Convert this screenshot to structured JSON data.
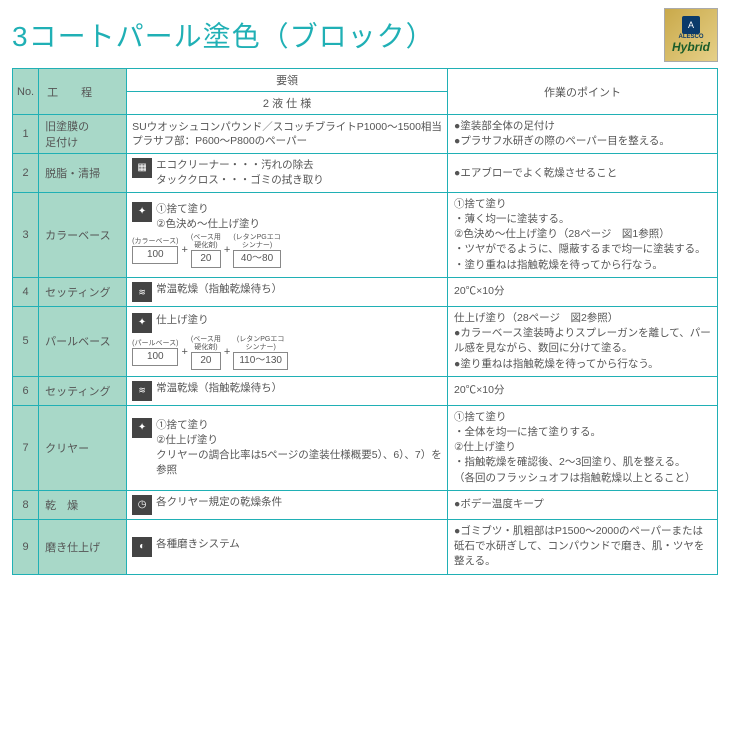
{
  "title": "3コートパール塗色（ブロック）",
  "logo": {
    "mark": "A",
    "brand": "ALESCO",
    "sub": "Hybrid"
  },
  "headers": {
    "no": "No.",
    "process": "工　程",
    "youryo": "要領",
    "sub": "2 液 仕 様",
    "point": "作業のポイント"
  },
  "rows": [
    {
      "no": "1",
      "process": "旧塗膜の\n足付け",
      "detail": "SUウオッシュコンパウンド／スコッチブライトP1000〜1500相当\nプラサフ部：P600〜P800のペーパー",
      "point": "●塗装部全体の足付け\n●プラサフ水研ぎの際のペーパー目を整える。"
    },
    {
      "no": "2",
      "process": "脱脂・清掃",
      "icon": "cleaner",
      "detail": "エコクリーナー・・・汚れの除去\nタッククロス・・・ゴミの拭き取り",
      "point": "●エアブローでよく乾燥させること"
    },
    {
      "no": "3",
      "process": "カラーベース",
      "icon": "spray",
      "detail": "①捨て塗り\n②色決め〜仕上げ塗り",
      "mix": {
        "labels": [
          "(カラーベース)",
          "(ベース用\n硬化剤)",
          "(レタンPGエコ\nシンナー)"
        ],
        "values": [
          "100",
          "20",
          "40〜80"
        ]
      },
      "point": "①捨て塗り\n・薄く均一に塗装する。\n②色決め〜仕上げ塗り（28ページ　図1参照）\n・ツヤがでるように、隠蔽するまで均一に塗装する。\n・塗り重ねは指触乾燥を待ってから行なう。"
    },
    {
      "no": "4",
      "process": "セッティング",
      "icon": "dry",
      "detail": "常温乾燥（指触乾燥待ち）",
      "point": "20℃×10分"
    },
    {
      "no": "5",
      "process": "パールベース",
      "icon": "spray",
      "detail": "仕上げ塗り",
      "mix": {
        "labels": [
          "(パールベース)",
          "(ベース用\n硬化剤)",
          "(レタンPGエコ\nシンナー)"
        ],
        "values": [
          "100",
          "20",
          "110〜130"
        ]
      },
      "point": "仕上げ塗り（28ページ　図2参照）\n●カラーベース塗装時よりスプレーガンを離して、パール感を見ながら、数回に分けて塗る。\n●塗り重ねは指触乾燥を待ってから行なう。"
    },
    {
      "no": "6",
      "process": "セッティング",
      "icon": "dry",
      "detail": "常温乾燥（指触乾燥待ち）",
      "point": "20℃×10分"
    },
    {
      "no": "7",
      "process": "クリヤー",
      "icon": "spray",
      "detail": "①捨て塗り\n②仕上げ塗り\nクリヤーの調合比率は5ページの塗装仕様概要5）、6）、7）を参照",
      "point": "①捨て塗り\n・全体を均一に捨て塗りする。\n②仕上げ塗り\n・指触乾燥を確認後、2〜3回塗り、肌を整える。\n（各回のフラッシュオフは指触乾燥以上とること）"
    },
    {
      "no": "8",
      "process": "乾　燥",
      "icon": "clock",
      "detail": "各クリヤー規定の乾燥条件",
      "point": "●ボデー温度キープ"
    },
    {
      "no": "9",
      "process": "磨き仕上げ",
      "icon": "polish",
      "detail": "各種磨きシステム",
      "point": "●ゴミブツ・肌粗部はP1500〜2000のペーパーまたは砥石で水研ぎして、コンパウンドで磨き、肌・ツヤを整える。"
    }
  ]
}
